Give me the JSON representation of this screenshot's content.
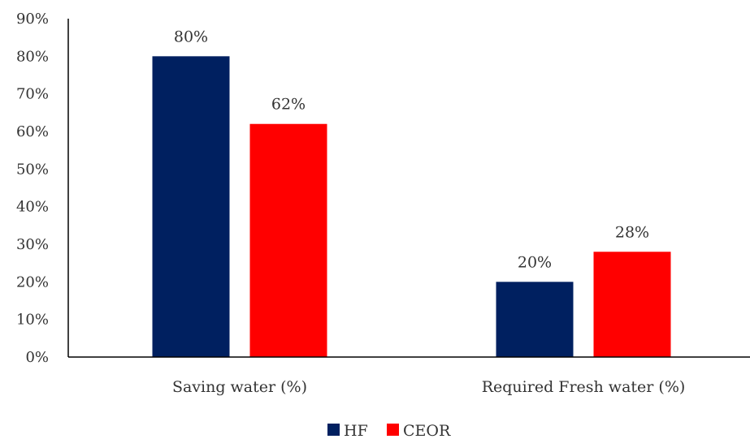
{
  "chart_data": {
    "type": "bar",
    "categories": [
      "Saving water (%)",
      "Required Fresh water (%)"
    ],
    "series": [
      {
        "name": "HF",
        "values": [
          80,
          20
        ],
        "color": "#002060"
      },
      {
        "name": "CEOR",
        "values": [
          62,
          28
        ],
        "color": "#FF0000"
      }
    ],
    "data_labels": [
      [
        "80%",
        "20%"
      ],
      [
        "62%",
        "28%"
      ]
    ],
    "ylim": [
      0,
      90
    ],
    "yticks": [
      0,
      10,
      20,
      30,
      40,
      50,
      60,
      70,
      80,
      90
    ],
    "ytick_labels": [
      "0%",
      "10%",
      "20%",
      "30%",
      "40%",
      "50%",
      "60%",
      "70%",
      "80%",
      "90%"
    ],
    "grid": false,
    "legend_position": "bottom"
  }
}
